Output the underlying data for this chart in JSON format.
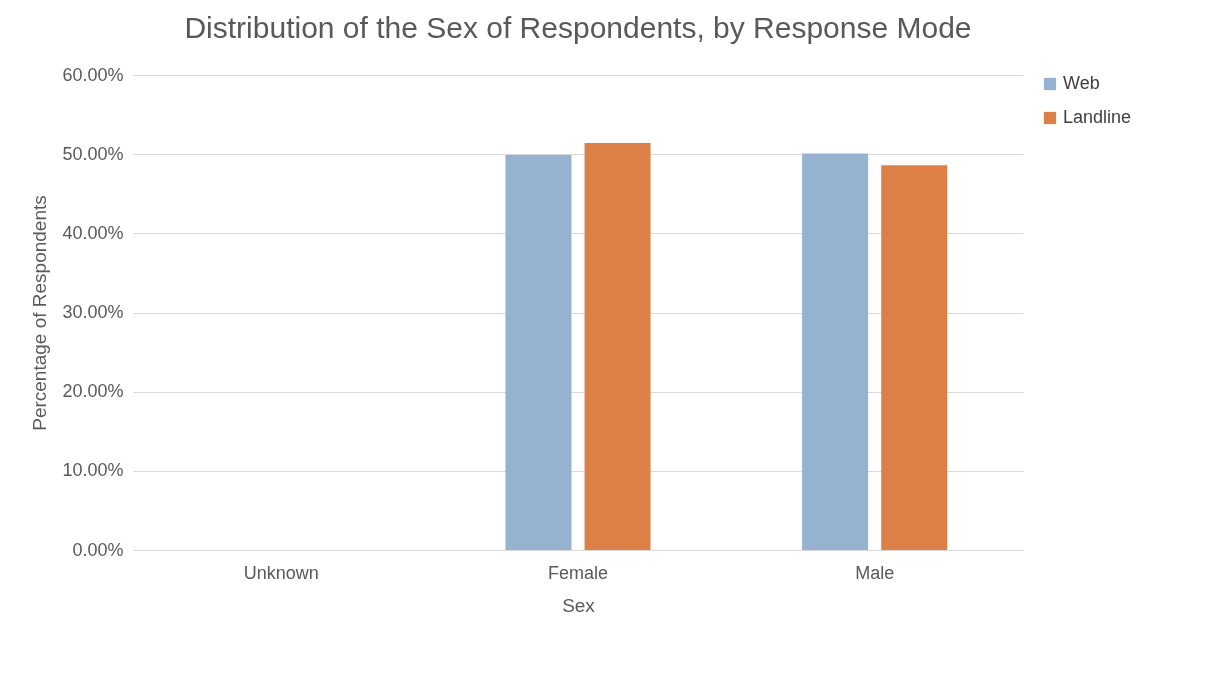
{
  "chart_data": {
    "type": "bar",
    "title": "Distribution of the Sex of Respondents, by Response Mode",
    "xlabel": "Sex",
    "ylabel": "Percentage of Respondents",
    "categories": [
      "Unknown",
      "Female",
      "Male"
    ],
    "series": [
      {
        "name": "Web",
        "color": "#95b3d1",
        "values": [
          0,
          49.9,
          50.1
        ]
      },
      {
        "name": "Landline",
        "color": "#dd8047",
        "values": [
          0,
          51.4,
          48.6
        ]
      }
    ],
    "ylim": [
      0,
      60
    ],
    "yticks": [
      {
        "value": 0,
        "label": "0.00%"
      },
      {
        "value": 10,
        "label": "10.00%"
      },
      {
        "value": 20,
        "label": "20.00%"
      },
      {
        "value": 30,
        "label": "30.00%"
      },
      {
        "value": 40,
        "label": "40.00%"
      },
      {
        "value": 50,
        "label": "50.00%"
      },
      {
        "value": 60,
        "label": "60.00%"
      }
    ],
    "grid": "y",
    "legend": "right"
  }
}
